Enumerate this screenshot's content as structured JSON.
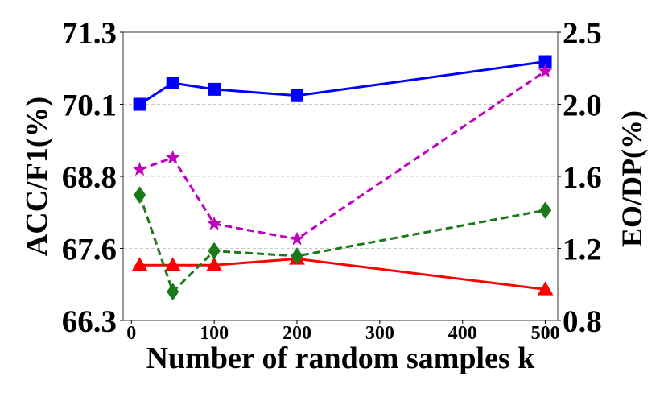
{
  "chart_data": {
    "type": "line",
    "xlabel": "Number of random samples k",
    "ylabel_left": "ACC/F1(%)",
    "ylabel_right": "EO/DP(%)",
    "xlim": [
      -10,
      515
    ],
    "ylim_left": [
      66.3,
      71.3
    ],
    "ylim_right": [
      0.8,
      2.5
    ],
    "xticks": [
      "0",
      "100",
      "200",
      "300",
      "400",
      "500"
    ],
    "xtick_values": [
      0,
      100,
      200,
      300,
      400,
      500
    ],
    "yticks_left": [
      "66.3",
      "67.6",
      "68.8",
      "70.1",
      "71.3"
    ],
    "yticks_left_values": [
      66.3,
      67.55,
      68.8,
      70.05,
      71.3
    ],
    "yticks_right": [
      "0.8",
      "1.2",
      "1.6",
      "2.0",
      "2.5"
    ],
    "yticks_right_values": [
      0.8,
      1.225,
      1.65,
      2.075,
      2.5
    ],
    "grid": "horizontal dashed",
    "x": [
      10,
      50,
      100,
      200,
      500
    ],
    "series": [
      {
        "axis": "left",
        "color": "#0000ff",
        "dash": "solid",
        "marker": "square",
        "values": [
          70.05,
          70.42,
          70.31,
          70.2,
          70.79
        ]
      },
      {
        "axis": "left",
        "color": "#ff0000",
        "dash": "solid",
        "marker": "triangle",
        "values": [
          67.26,
          67.26,
          67.26,
          67.37,
          66.84
        ]
      },
      {
        "axis": "right",
        "color": "#bf00bf",
        "dash": "dashed",
        "marker": "star",
        "values": [
          1.69,
          1.76,
          1.37,
          1.28,
          2.27
        ]
      },
      {
        "axis": "right",
        "color": "#1a7a1a",
        "dash": "dashed",
        "marker": "diamond",
        "values": [
          1.54,
          0.97,
          1.21,
          1.18,
          1.45
        ]
      }
    ]
  }
}
